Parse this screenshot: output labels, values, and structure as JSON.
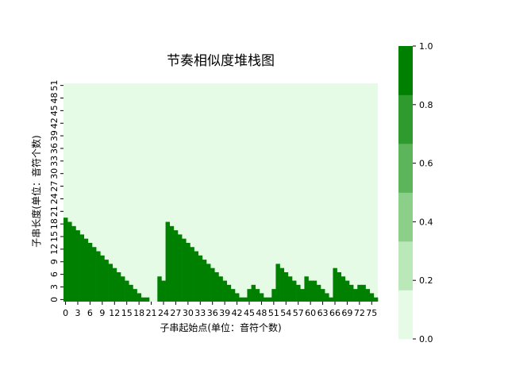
{
  "chart_data": {
    "type": "heatmap",
    "title": "节奏相似度堆栈图",
    "xlabel": "子串起始点(单位：音符个数)",
    "ylabel": "子串长度(单位：音符个数)",
    "x_range": [
      0,
      77
    ],
    "y_range": [
      0,
      52
    ],
    "x_tick_labels": [
      "0",
      "3",
      "6",
      "9",
      "12",
      "15",
      "18",
      "21",
      "24",
      "27",
      "30",
      "33",
      "36",
      "39",
      "42",
      "45",
      "48",
      "51",
      "54",
      "57",
      "60",
      "63",
      "66",
      "69",
      "72",
      "75"
    ],
    "y_tick_labels": [
      "0",
      "3",
      "6",
      "9",
      "12",
      "15",
      "18",
      "21",
      "24",
      "27",
      "30",
      "33",
      "36",
      "39",
      "42",
      "45",
      "48",
      "51"
    ],
    "colorbar": {
      "min": 0.0,
      "max": 1.0,
      "ticks": [
        "0.0",
        "0.2",
        "0.4",
        "0.6",
        "0.8",
        "1.0"
      ],
      "colors": [
        "#e5fbe5",
        "#bae8b9",
        "#8ccf89",
        "#5db55b",
        "#2f9b2e",
        "#008000"
      ]
    },
    "value_high": 1.0,
    "value_low": 0.0,
    "column_heights": [
      20,
      19,
      18,
      17,
      16,
      15,
      14,
      13,
      12,
      11,
      10,
      9,
      8,
      7,
      6,
      5,
      4,
      3,
      2,
      1,
      1,
      0,
      0,
      6,
      5,
      19,
      18,
      17,
      16,
      15,
      14,
      13,
      12,
      11,
      10,
      9,
      8,
      7,
      6,
      5,
      4,
      3,
      2,
      1,
      1,
      3,
      4,
      3,
      2,
      1,
      1,
      3,
      9,
      8,
      7,
      6,
      5,
      4,
      3,
      6,
      5,
      5,
      4,
      3,
      2,
      1,
      8,
      7,
      6,
      5,
      4,
      3,
      4,
      4,
      3,
      2,
      1
    ]
  }
}
